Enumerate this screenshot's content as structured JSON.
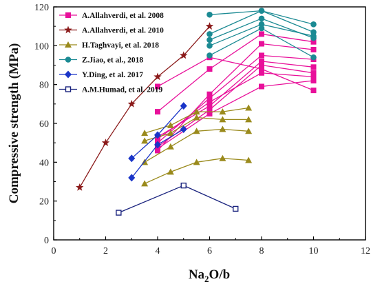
{
  "chart_data": {
    "type": "line",
    "xlabel": "Na2O/b",
    "ylabel": "Compressive strength (MPa)",
    "xlim": [
      0,
      12
    ],
    "ylim": [
      0,
      120
    ],
    "xticks": [
      "0",
      "2",
      "4",
      "6",
      "8",
      "10",
      "12"
    ],
    "yticks": [
      "0",
      "20",
      "40",
      "60",
      "80",
      "100",
      "120"
    ],
    "grid": false,
    "legend_position": "top-left",
    "series": [
      {
        "name": "A.Allahverdi, et al. 2008",
        "color": "#e8109a",
        "marker": "square",
        "lines": [
          {
            "x": [
              4,
              6,
              8,
              10
            ],
            "y": [
              79,
              94,
              88,
              77
            ]
          },
          {
            "x": [
              4,
              6,
              8,
              10
            ],
            "y": [
              66,
              88,
              106,
              102
            ]
          },
          {
            "x": [
              4,
              6,
              8,
              10
            ],
            "y": [
              46,
              75,
              101,
              98
            ]
          },
          {
            "x": [
              4,
              6,
              8,
              10
            ],
            "y": [
              50,
              73,
              95,
              93
            ]
          },
          {
            "x": [
              4,
              6,
              8,
              10
            ],
            "y": [
              53,
              69,
              92,
              89
            ]
          },
          {
            "x": [
              4,
              6,
              8,
              10
            ],
            "y": [
              48,
              67,
              90,
              86
            ]
          },
          {
            "x": [
              4,
              6,
              8,
              10
            ],
            "y": [
              52,
              71,
              86,
              84
            ]
          },
          {
            "x": [
              4,
              6,
              8,
              10
            ],
            "y": [
              47,
              65,
              79,
              82
            ]
          }
        ]
      },
      {
        "name": "A.Allahverdi, et al. 2010",
        "color": "#8b1a1a",
        "marker": "star",
        "lines": [
          {
            "x": [
              1,
              2,
              3,
              4,
              5,
              6
            ],
            "y": [
              27,
              50,
              70,
              84,
              95,
              110
            ]
          }
        ]
      },
      {
        "name": "H.Taghvayi, et al. 2018",
        "color": "#9a8a1c",
        "marker": "triangle",
        "lines": [
          {
            "x": [
              3.5,
              4.5,
              5.5,
              6.5,
              7.5
            ],
            "y": [
              55,
              59,
              66,
              66,
              68
            ]
          },
          {
            "x": [
              3.5,
              4.5,
              5.5,
              6.5,
              7.5
            ],
            "y": [
              51,
              55,
              63,
              62,
              62
            ]
          },
          {
            "x": [
              3.5,
              4.5,
              5.5,
              6.5,
              7.5
            ],
            "y": [
              40,
              48,
              56,
              57,
              56
            ]
          },
          {
            "x": [
              3.5,
              4.5,
              5.5,
              6.5,
              7.5
            ],
            "y": [
              29,
              35,
              40,
              42,
              41
            ]
          }
        ]
      },
      {
        "name": "Z.Jiao, et al., 2018",
        "color": "#1b8a93",
        "marker": "circle",
        "lines": [
          {
            "x": [
              6,
              8,
              10
            ],
            "y": [
              116,
              118,
              111
            ]
          },
          {
            "x": [
              6,
              8,
              10
            ],
            "y": [
              106,
              118,
              107
            ]
          },
          {
            "x": [
              6,
              8,
              10
            ],
            "y": [
              103,
              114,
              104
            ]
          },
          {
            "x": [
              6,
              8,
              10
            ],
            "y": [
              100,
              111,
              105
            ]
          },
          {
            "x": [
              6,
              8,
              10
            ],
            "y": [
              95,
              109,
              94
            ]
          }
        ]
      },
      {
        "name": "Y.Ding, et al. 2017",
        "color": "#1a35c8",
        "marker": "diamond",
        "lines": [
          {
            "x": [
              3,
              4,
              5
            ],
            "y": [
              42,
              54,
              69
            ]
          },
          {
            "x": [
              3,
              4,
              5
            ],
            "y": [
              32,
              49,
              57
            ]
          }
        ]
      },
      {
        "name": "A.M.Humad, et al. 2019",
        "color": "#1a237e",
        "marker": "square-open",
        "lines": [
          {
            "x": [
              2.5,
              5,
              7
            ],
            "y": [
              14,
              28,
              16
            ]
          }
        ]
      }
    ]
  }
}
